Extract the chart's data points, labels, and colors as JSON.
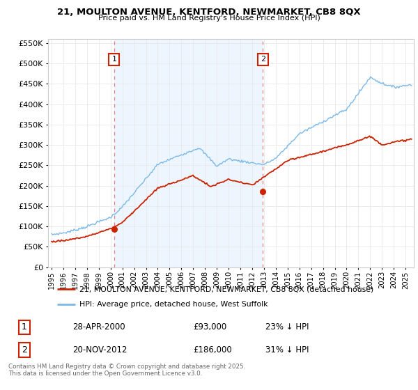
{
  "title_line1": "21, MOULTON AVENUE, KENTFORD, NEWMARKET, CB8 8QX",
  "title_line2": "Price paid vs. HM Land Registry's House Price Index (HPI)",
  "legend_line1": "21, MOULTON AVENUE, KENTFORD, NEWMARKET, CB8 8QX (detached house)",
  "legend_line2": "HPI: Average price, detached house, West Suffolk",
  "annotation1_date": "28-APR-2000",
  "annotation1_price": "£93,000",
  "annotation1_hpi": "23% ↓ HPI",
  "annotation2_date": "20-NOV-2012",
  "annotation2_price": "£186,000",
  "annotation2_hpi": "31% ↓ HPI",
  "footer": "Contains HM Land Registry data © Crown copyright and database right 2025.\nThis data is licensed under the Open Government Licence v3.0.",
  "hpi_color": "#7ab8e8",
  "price_color": "#cc2200",
  "vline_color": "#e08080",
  "shade_color": "#dceeff",
  "annotation_box_color": "#cc2200",
  "background_color": "#ffffff",
  "ylim": [
    0,
    560000
  ],
  "yticks": [
    0,
    50000,
    100000,
    150000,
    200000,
    250000,
    300000,
    350000,
    400000,
    450000,
    500000,
    550000
  ],
  "sale1_x": 2000.3,
  "sale1_y": 93000,
  "sale2_x": 2012.9,
  "sale2_y": 186000,
  "xlim_left": 1994.7,
  "xlim_right": 2025.7
}
